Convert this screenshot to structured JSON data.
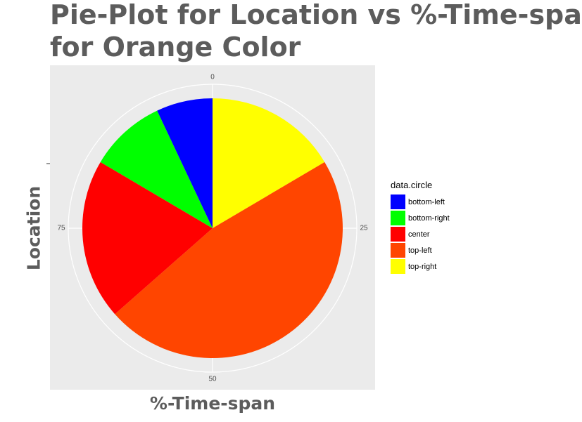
{
  "chart_data": {
    "type": "pie",
    "title_lines": [
      "Pie-Plot for Location vs %-Time-span",
      "for Orange Color"
    ],
    "xlabel": "%-Time-span",
    "ylabel": "Location",
    "theta_ticks": [
      {
        "value": 0,
        "label": "0"
      },
      {
        "value": 25,
        "label": "25"
      },
      {
        "value": 50,
        "label": "50"
      },
      {
        "value": 75,
        "label": "75"
      }
    ],
    "theta_range": [
      0,
      100
    ],
    "legend_title": "data.circle",
    "legend_position": "right",
    "slices": [
      {
        "name": "top-right",
        "value": 16.5,
        "color": "#FFFF00"
      },
      {
        "name": "top-left",
        "value": 47.0,
        "color": "#FF4500"
      },
      {
        "name": "center",
        "value": 20.0,
        "color": "#FF0000"
      },
      {
        "name": "bottom-right",
        "value": 9.5,
        "color": "#00FF00"
      },
      {
        "name": "bottom-left",
        "value": 7.0,
        "color": "#0000FF"
      }
    ],
    "legend_order": [
      "bottom-left",
      "bottom-right",
      "center",
      "top-left",
      "top-right"
    ]
  }
}
